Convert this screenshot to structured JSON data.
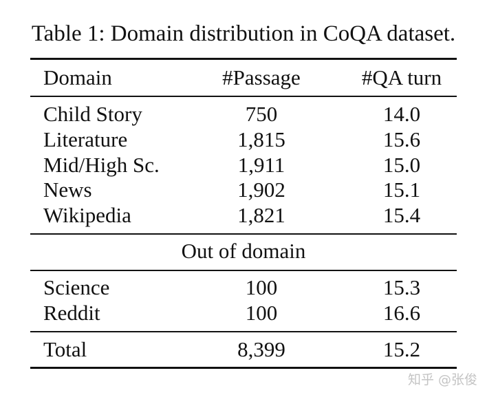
{
  "caption": "Table 1: Domain distribution in CoQA dataset.",
  "table": {
    "headers": [
      "Domain",
      "#Passage",
      "#QA turn"
    ],
    "in_domain_rows": [
      [
        "Child Story",
        "750",
        "14.0"
      ],
      [
        "Literature",
        "1,815",
        "15.6"
      ],
      [
        "Mid/High Sc.",
        "1,911",
        "15.0"
      ],
      [
        "News",
        "1,902",
        "15.1"
      ],
      [
        "Wikipedia",
        "1,821",
        "15.4"
      ]
    ],
    "section_label": "Out of domain",
    "out_domain_rows": [
      [
        "Science",
        "100",
        "15.3"
      ],
      [
        "Reddit",
        "100",
        "16.6"
      ]
    ],
    "total_row": [
      "Total",
      "8,399",
      "15.2"
    ]
  },
  "watermark": "知乎 @张俊"
}
